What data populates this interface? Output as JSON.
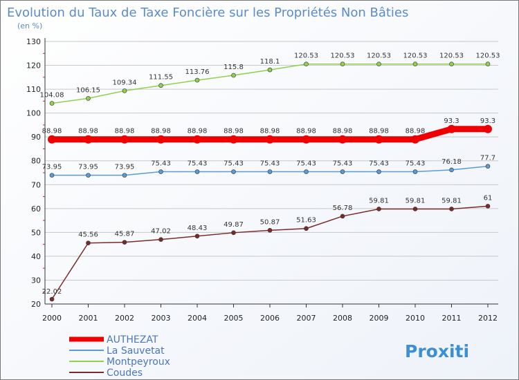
{
  "chart_data": {
    "type": "line",
    "title": "Evolution du Taux de Taxe Foncière sur les Propriétés Non Bâties",
    "ylabel": "(en %)",
    "xlabel": "",
    "categories": [
      "2000",
      "2001",
      "2002",
      "2003",
      "2004",
      "2005",
      "2006",
      "2007",
      "2008",
      "2009",
      "2010",
      "2011",
      "2012"
    ],
    "ylim": [
      20,
      130
    ],
    "yticks": [
      20,
      30,
      40,
      50,
      60,
      70,
      80,
      90,
      100,
      110,
      120,
      130
    ],
    "grid": "horizontal",
    "legend_position": "bottom-left",
    "series": [
      {
        "name": "AUTHEZAT",
        "color": "#ee0000",
        "values": [
          88.98,
          88.98,
          88.98,
          88.98,
          88.98,
          88.98,
          88.98,
          88.98,
          88.98,
          88.98,
          88.98,
          93.3,
          93.3
        ],
        "labels": [
          "88.98",
          "88.98",
          "88.98",
          "88.98",
          "88.98",
          "88.98",
          "88.98",
          "88.98",
          "88.98",
          "88.98",
          "88.98",
          "93.3",
          "93.3"
        ]
      },
      {
        "name": "La Sauvetat",
        "color": "#5b9bd5",
        "values": [
          73.95,
          73.95,
          73.95,
          75.43,
          75.43,
          75.43,
          75.43,
          75.43,
          75.43,
          75.43,
          75.43,
          76.18,
          77.7
        ],
        "labels": [
          "73.95",
          "73.95",
          "73.95",
          "75.43",
          "75.43",
          "75.43",
          "75.43",
          "75.43",
          "75.43",
          "75.43",
          "75.43",
          "76.18",
          "77.7"
        ]
      },
      {
        "name": "Montpeyroux",
        "color": "#8fd14f",
        "values": [
          104.08,
          106.15,
          109.34,
          111.55,
          113.76,
          115.8,
          118.1,
          120.53,
          120.53,
          120.53,
          120.53,
          120.53,
          120.53
        ],
        "labels": [
          "104.08",
          "106.15",
          "109.34",
          "111.55",
          "113.76",
          "115.8",
          "118.1",
          "120.53",
          "120.53",
          "120.53",
          "120.53",
          "120.53",
          "120.53"
        ]
      },
      {
        "name": "Coudes",
        "color": "#7b2a2a",
        "values": [
          22.02,
          45.56,
          45.87,
          47.02,
          48.43,
          49.87,
          50.87,
          51.63,
          56.78,
          59.81,
          59.81,
          59.81,
          61
        ],
        "labels": [
          "22.02",
          "45.56",
          "45.87",
          "47.02",
          "48.43",
          "49.87",
          "50.87",
          "51.63",
          "56.78",
          "59.81",
          "59.81",
          "59.81",
          "61"
        ]
      }
    ]
  },
  "brand": {
    "logo_text": "Proxiti"
  }
}
